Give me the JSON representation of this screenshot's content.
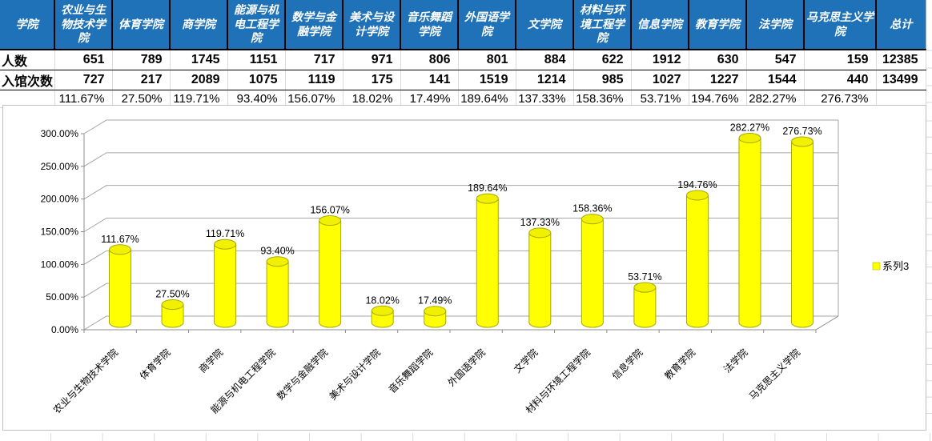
{
  "table": {
    "corner_label": "学院",
    "columns": [
      "农业与生物技术学院",
      "体育学院",
      "商学院",
      "能源与机电工程学院",
      "数学与金融学院",
      "美术与设计学院",
      "音乐舞蹈学院",
      "外国语学院",
      "文学院",
      "材料与环境工程学院",
      "信息学院",
      "教育学院",
      "法学院",
      "马克思主义学院",
      "总计"
    ],
    "rows": [
      {
        "label": "人数",
        "cells": [
          "651",
          "789",
          "1745",
          "1151",
          "717",
          "971",
          "806",
          "801",
          "884",
          "622",
          "1912",
          "630",
          "547",
          "159",
          "12385"
        ]
      },
      {
        "label": "入馆次数",
        "cells": [
          "727",
          "217",
          "2089",
          "1075",
          "1119",
          "175",
          "141",
          "1519",
          "1214",
          "985",
          "1027",
          "1227",
          "1544",
          "440",
          "13499"
        ]
      },
      {
        "label": "",
        "cells": [
          "111.67%",
          "27.50%",
          "119.71%",
          "93.40%",
          "156.07%",
          "18.02%",
          "17.49%",
          "189.64%",
          "137.33%",
          "158.36%",
          "53.71%",
          "194.76%",
          "282.27%",
          "276.73%",
          ""
        ]
      }
    ]
  },
  "chart_data": {
    "type": "bar",
    "style": "3d-cylinder",
    "title": "",
    "categories": [
      "农业与生物技术学院",
      "体育学院",
      "商学院",
      "能源与机电工程学院",
      "数学与金融学院",
      "美术与设计学院",
      "音乐舞蹈学院",
      "外国语学院",
      "文学院",
      "材料与环境工程学院",
      "信息学院",
      "教育学院",
      "法学院",
      "马克思主义学院"
    ],
    "series": [
      {
        "name": "系列3",
        "values": [
          111.67,
          27.5,
          119.71,
          93.4,
          156.07,
          18.02,
          17.49,
          189.64,
          137.33,
          158.36,
          53.71,
          194.76,
          282.27,
          276.73
        ]
      }
    ],
    "data_labels": [
      "111.67%",
      "27.50%",
      "119.71%",
      "93.40%",
      "156.07%",
      "18.02%",
      "17.49%",
      "189.64%",
      "137.33%",
      "158.36%",
      "53.71%",
      "194.76%",
      "282.27%",
      "276.73%"
    ],
    "y_ticks": [
      "0.00%",
      "50.00%",
      "100.00%",
      "150.00%",
      "200.00%",
      "250.00%",
      "300.00%"
    ],
    "ylim": [
      0,
      300
    ],
    "grid": true,
    "legend": {
      "label": "系列3",
      "position": "right"
    }
  },
  "colors": {
    "header_bg": "#1F72B8",
    "header_text": "#ffffff",
    "bar_fill": "#FFFF00",
    "bar_edge": "#A8A800",
    "bar_top_fill": "#F0F000",
    "gridline": "#A6A6A6",
    "chart_border": "#C0C0C0"
  }
}
